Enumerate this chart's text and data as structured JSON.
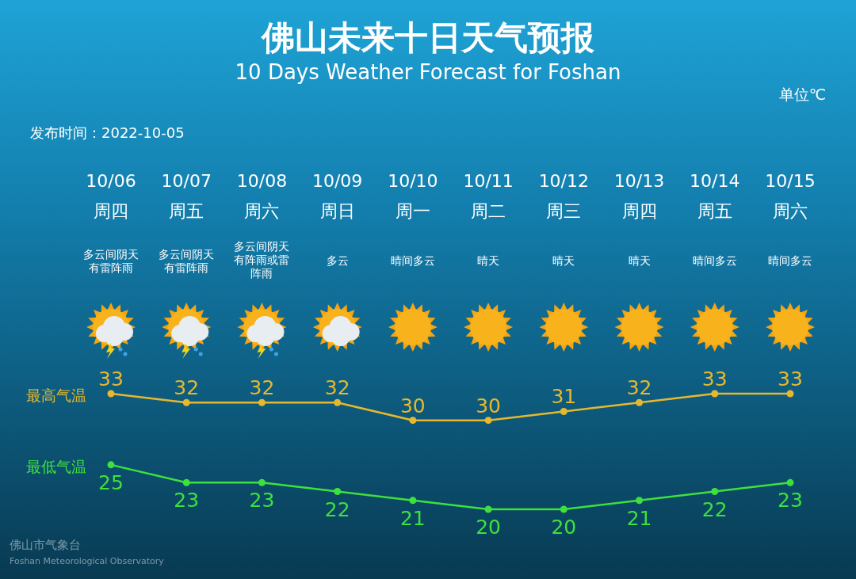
{
  "chart_data": {
    "type": "line",
    "title": "佛山未来十日天气预报",
    "subtitle": "10 Days Weather Forecast for Foshan",
    "categories": [
      "10/06\n周四",
      "10/07\n周五",
      "10/08\n周六",
      "10/09\n周日",
      "10/10\n周一",
      "10/11\n周二",
      "10/12\n周三",
      "10/13\n周四",
      "10/14\n周五",
      "10/15\n周六"
    ],
    "series": [
      {
        "name": "最高气温",
        "color": "#e6b82e",
        "values": [
          33,
          32,
          32,
          32,
          30,
          30,
          31,
          32,
          33,
          33
        ]
      },
      {
        "name": "最低气温",
        "color": "#3ee03e",
        "values": [
          25,
          23,
          23,
          22,
          21,
          20,
          20,
          21,
          22,
          23
        ]
      }
    ],
    "data_labels": true,
    "marker": "circle",
    "legend": false,
    "grid": false,
    "annotations": [
      "单位℃",
      "发布时间：2022-10-05",
      "佛山市气象台",
      "Foshan Meteorological Observatory",
      "多云间阴天有雷阵雨",
      "多云间阴天有雷阵雨",
      "多云间阴天有阵雨或雷阵雨",
      "多云",
      "晴间多云",
      "晴天",
      "晴天",
      "晴天",
      "晴间多云",
      "晴间多云"
    ]
  }
}
